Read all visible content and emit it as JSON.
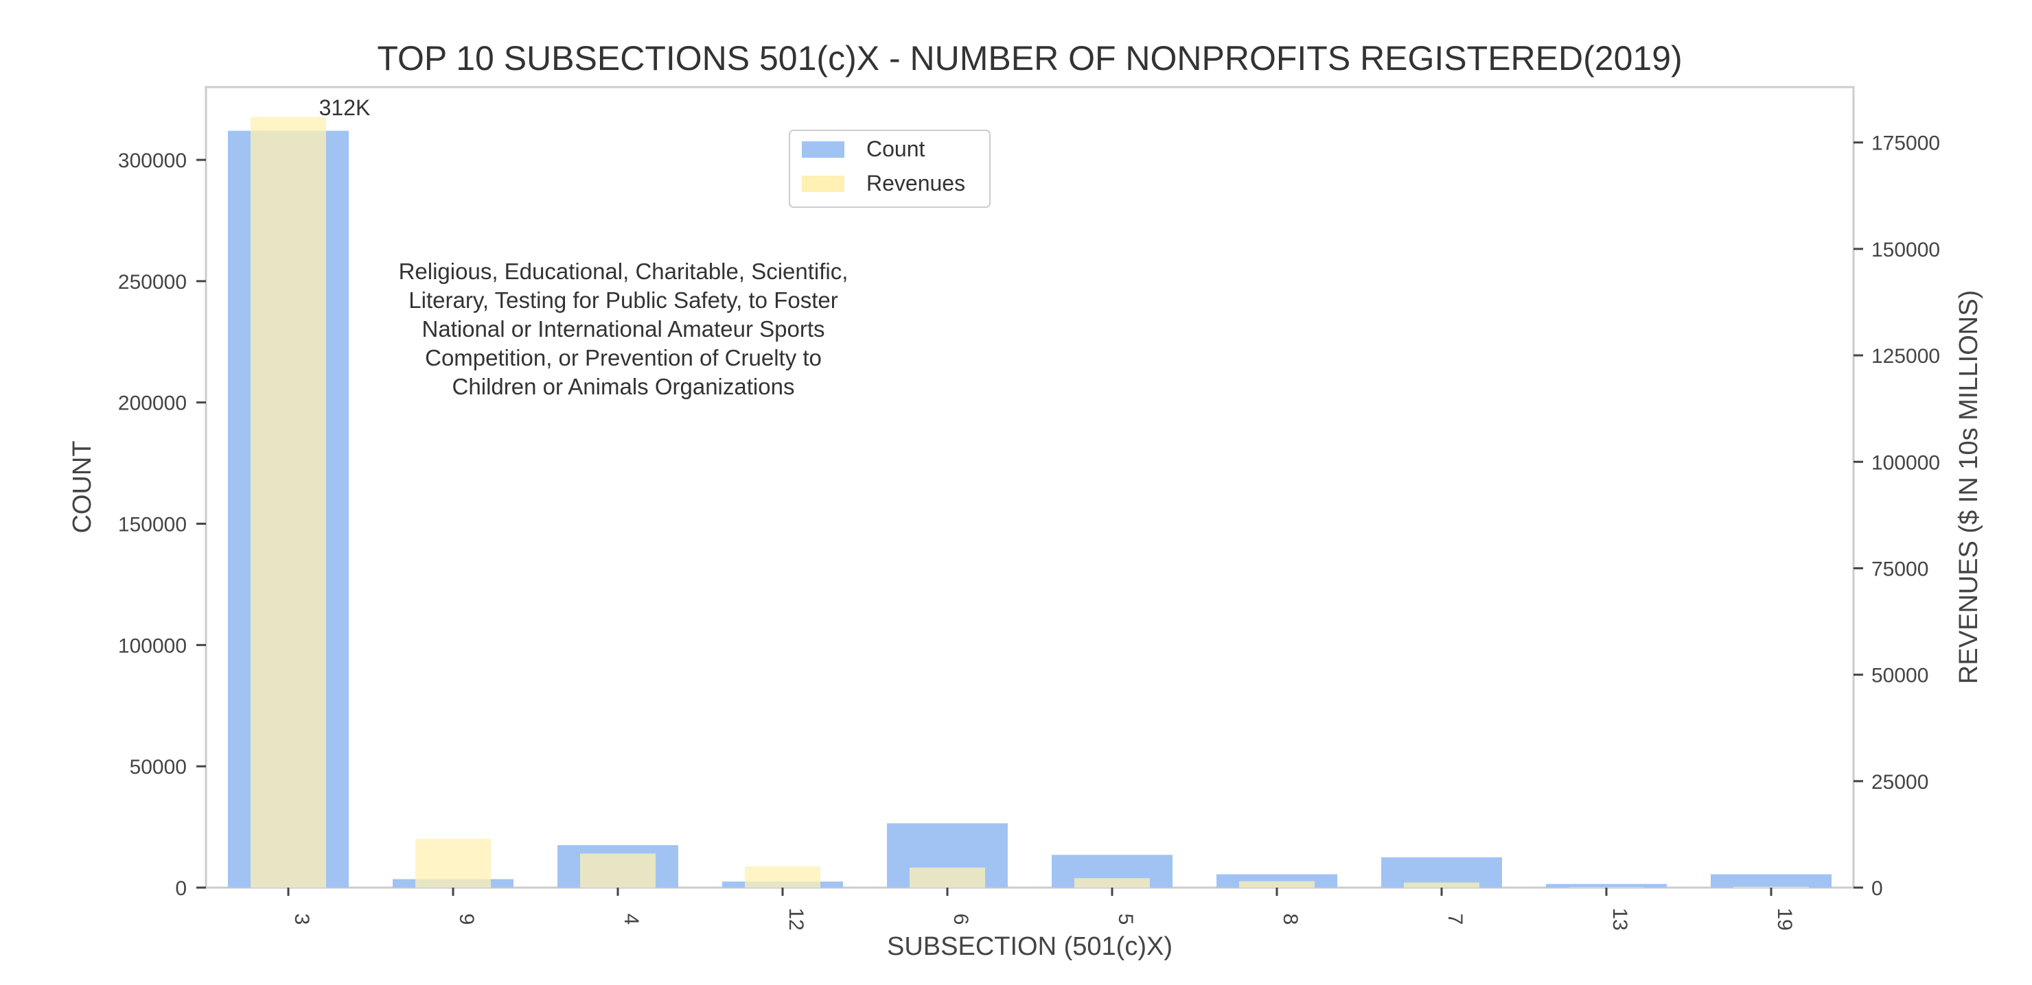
{
  "chart_data": {
    "type": "bar",
    "title": "TOP 10 SUBSECTIONS 501(c)X - NUMBER OF NONPROFITS REGISTERED(2019)",
    "xlabel": "SUBSECTION (501(c)X)",
    "ylabel": "COUNT",
    "y2label": "REVENUES ($ IN 10s MILLIONS)",
    "categories": [
      "3",
      "9",
      "4",
      "12",
      "6",
      "5",
      "8",
      "7",
      "13",
      "19"
    ],
    "ylim": [
      0,
      330000
    ],
    "y2lim": [
      0,
      188000
    ],
    "yticks": [
      0,
      50000,
      100000,
      150000,
      200000,
      250000,
      300000
    ],
    "y2ticks": [
      0,
      25000,
      50000,
      75000,
      100000,
      125000,
      150000,
      175000
    ],
    "series": [
      {
        "name": "Count",
        "axis": "left",
        "color": "#a1c3f4",
        "values": [
          312000,
          3500,
          17500,
          2500,
          26500,
          13500,
          5500,
          12500,
          1500,
          5500
        ]
      },
      {
        "name": "Revenues",
        "axis": "right",
        "color": "#fff0b3",
        "values": [
          181000,
          11500,
          8000,
          5000,
          4700,
          2200,
          1500,
          1200,
          100,
          200
        ]
      }
    ],
    "data_labels": [
      {
        "category": "3",
        "text": "312K"
      }
    ],
    "annotation": {
      "lines": [
        "Religious, Educational, Charitable, Scientific,",
        "Literary, Testing for Public Safety, to Foster",
        "National or International Amateur Sports",
        "Competition, or Prevention of Cruelty to",
        "Children or Animals Organizations"
      ]
    },
    "legend": {
      "position": "top-center",
      "entries": [
        "Count",
        "Revenues"
      ]
    },
    "grid": false
  }
}
